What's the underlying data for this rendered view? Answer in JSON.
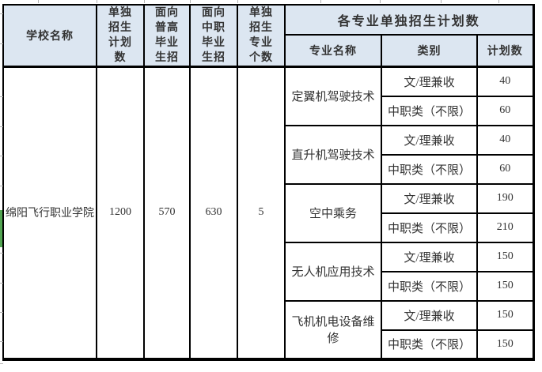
{
  "colors": {
    "header_bg": "#DCE6F1",
    "border": "#000000",
    "text": "#333333",
    "marker_green": "#53A653"
  },
  "header": {
    "school": "学校名称",
    "plan_total": "单独\n招生\n计划\n数",
    "general_hs": "面向\n普高\n毕业\n生招",
    "vocational_hs": "面向\n中职\n毕业\n生招",
    "major_count": "单独\n招生\n专业\n个数",
    "per_major_title": "各专业单独招生计划数",
    "sub": {
      "major": "专业名称",
      "category": "类别",
      "plan": "计划数"
    }
  },
  "school_row": {
    "name": "绵阳飞行职业学院",
    "plan_total": "1200",
    "general_hs": "570",
    "vocational_hs": "630",
    "major_count": "5"
  },
  "majors": [
    {
      "name": "定翼机驾驶技术",
      "rows": [
        {
          "category": "文/理兼收",
          "plan": "40"
        },
        {
          "category": "中职类（不限）",
          "plan": "60"
        }
      ]
    },
    {
      "name": "直升机驾驶技术",
      "rows": [
        {
          "category": "文/理兼收",
          "plan": "40"
        },
        {
          "category": "中职类（不限）",
          "plan": "60"
        }
      ]
    },
    {
      "name": "空中乘务",
      "rows": [
        {
          "category": "文/理兼收",
          "plan": "190"
        },
        {
          "category": "中职类（不限）",
          "plan": "210"
        }
      ]
    },
    {
      "name": "无人机应用技术",
      "rows": [
        {
          "category": "文/理兼收",
          "plan": "150"
        },
        {
          "category": "中职类（不限）",
          "plan": "150"
        }
      ]
    },
    {
      "name": "飞机机电设备维修",
      "rows": [
        {
          "category": "文/理兼收",
          "plan": "150"
        },
        {
          "category": "中职类（不限）",
          "plan": "150"
        }
      ]
    }
  ]
}
